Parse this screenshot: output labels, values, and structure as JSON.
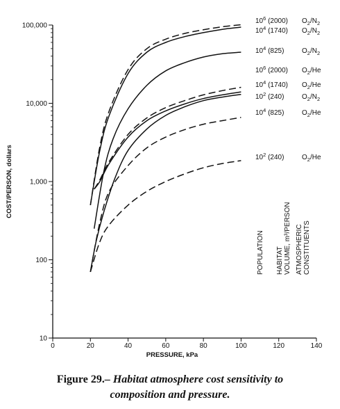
{
  "chart_data": {
    "type": "line",
    "title": "",
    "xlabel": "PRESSURE, kPa",
    "ylabel": "COST/PERSON, dollars",
    "xlim": [
      0,
      140
    ],
    "ylim": [
      10,
      100000
    ],
    "yscale": "log",
    "grid": false,
    "x_ticks": [
      0,
      20,
      40,
      60,
      80,
      100,
      120,
      140
    ],
    "y_ticks": [
      10,
      100,
      1000,
      10000,
      100000
    ],
    "y_tick_labels": [
      "10",
      "100",
      "1,000",
      "10,000",
      "100,000"
    ],
    "series": [
      {
        "name": "10⁶ (2000) O₂/N₂",
        "label": {
          "exp": "6",
          "vol": "(2000)",
          "gas": "O",
          "gas2": "/N",
          "sub": "2"
        },
        "style": "dashed",
        "points": [
          [
            20,
            500
          ],
          [
            25,
            2800
          ],
          [
            30,
            8000
          ],
          [
            40,
            27000
          ],
          [
            50,
            50000
          ],
          [
            60,
            66000
          ],
          [
            70,
            78000
          ],
          [
            80,
            87000
          ],
          [
            90,
            95000
          ],
          [
            100,
            101000
          ]
        ]
      },
      {
        "name": "10⁴ (1740) O₂/N₂",
        "label": {
          "exp": "4",
          "vol": "(1740)",
          "gas": "O",
          "gas2": "/N",
          "sub": "2"
        },
        "style": "solid",
        "points": [
          [
            20,
            500
          ],
          [
            25,
            2500
          ],
          [
            30,
            7000
          ],
          [
            40,
            24000
          ],
          [
            50,
            45000
          ],
          [
            60,
            60000
          ],
          [
            70,
            71000
          ],
          [
            80,
            80000
          ],
          [
            90,
            88000
          ],
          [
            100,
            94000
          ]
        ]
      },
      {
        "name": "10⁴ (825) O₂/N₂",
        "label": {
          "exp": "4",
          "vol": "(825)",
          "gas": "O",
          "gas2": "/N",
          "sub": "2"
        },
        "style": "solid",
        "points": [
          [
            22,
            250
          ],
          [
            27,
            1300
          ],
          [
            32,
            3500
          ],
          [
            40,
            8500
          ],
          [
            50,
            17000
          ],
          [
            60,
            26000
          ],
          [
            70,
            33000
          ],
          [
            80,
            39000
          ],
          [
            90,
            43000
          ],
          [
            100,
            45000
          ]
        ]
      },
      {
        "name": "10⁶ (2000) O₂/He",
        "label": {
          "exp": "6",
          "vol": "(2000)",
          "gas": "O",
          "gas2": "/He",
          "sub": "2"
        },
        "style": "dashed",
        "points": [
          [
            22,
            800
          ],
          [
            25,
            1050
          ],
          [
            30,
            1800
          ],
          [
            40,
            4000
          ],
          [
            50,
            6500
          ],
          [
            60,
            8800
          ],
          [
            70,
            10800
          ],
          [
            80,
            12800
          ],
          [
            90,
            14500
          ],
          [
            100,
            16000
          ]
        ]
      },
      {
        "name": "10⁴ (1740) O₂/He",
        "label": {
          "exp": "4",
          "vol": "(1740)",
          "gas": "O",
          "gas2": "/He",
          "sub": "2"
        },
        "style": "solid",
        "points": [
          [
            22,
            800
          ],
          [
            25,
            1000
          ],
          [
            30,
            1700
          ],
          [
            40,
            3700
          ],
          [
            50,
            6000
          ],
          [
            60,
            8000
          ],
          [
            70,
            9800
          ],
          [
            80,
            11500
          ],
          [
            90,
            12800
          ],
          [
            100,
            14000
          ]
        ]
      },
      {
        "name": "10² (240) O₂/N₂",
        "label": {
          "exp": "2",
          "vol": "(240)",
          "gas": "O",
          "gas2": "/N",
          "sub": "2"
        },
        "style": "solid",
        "points": [
          [
            20,
            70
          ],
          [
            23,
            170
          ],
          [
            27,
            400
          ],
          [
            33,
            1100
          ],
          [
            40,
            2500
          ],
          [
            50,
            4700
          ],
          [
            60,
            7000
          ],
          [
            70,
            9000
          ],
          [
            80,
            10800
          ],
          [
            90,
            12000
          ],
          [
            100,
            13000
          ]
        ]
      },
      {
        "name": "10⁴ (825) O₂/He",
        "label": {
          "exp": "4",
          "vol": "(825)",
          "gas": "O",
          "gas2": "/He",
          "sub": "2"
        },
        "style": "dashed",
        "points": [
          [
            20,
            70
          ],
          [
            25,
            300
          ],
          [
            30,
            750
          ],
          [
            40,
            1600
          ],
          [
            50,
            2700
          ],
          [
            60,
            3700
          ],
          [
            70,
            4600
          ],
          [
            80,
            5400
          ],
          [
            90,
            6000
          ],
          [
            100,
            6600
          ]
        ]
      },
      {
        "name": "10² (240) O₂/He",
        "label": {
          "exp": "2",
          "vol": "(240)",
          "gas": "O",
          "gas2": "/He",
          "sub": "2"
        },
        "style": "dashed",
        "points": [
          [
            20,
            70
          ],
          [
            25,
            170
          ],
          [
            30,
            280
          ],
          [
            40,
            500
          ],
          [
            50,
            750
          ],
          [
            60,
            1000
          ],
          [
            70,
            1250
          ],
          [
            80,
            1500
          ],
          [
            90,
            1700
          ],
          [
            100,
            1850
          ]
        ]
      }
    ],
    "side_labels": [
      [
        "POPULATION"
      ],
      [
        "HABITAT",
        "VOLUME, m³/PERSON"
      ],
      [
        "ATMOSPHERIC",
        "CONSTITUENTS"
      ]
    ]
  },
  "caption": {
    "number": "Figure 29.",
    "dash": "–",
    "line1": "Habitat atmosphere cost sensitivity to",
    "line2": "composition and pressure."
  }
}
